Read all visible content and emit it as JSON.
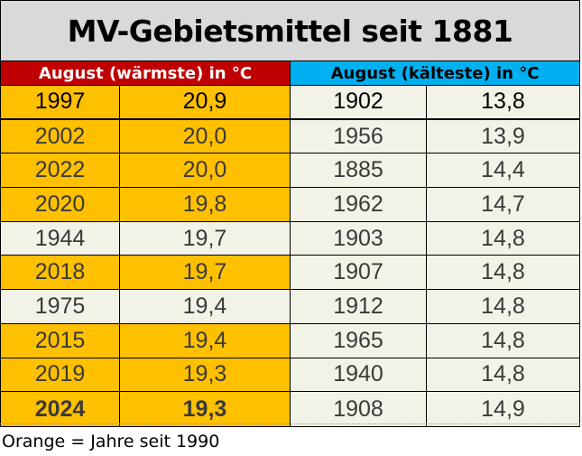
{
  "title": "MV-Gebietsmittel seit 1881",
  "header_warm": "August (wärmste) in °C",
  "header_cold": "August (kälteste) in °C",
  "colors": {
    "orange": "#ffc000",
    "red": "#c00000",
    "blue": "#00b0f0",
    "plain": "#f2f2e6"
  },
  "rows": [
    {
      "wy": "1997",
      "wv": "20,9",
      "orange": true,
      "cy": "1902",
      "cv": "13,8"
    },
    {
      "wy": "2002",
      "wv": "20,0",
      "orange": true,
      "cy": "1956",
      "cv": "13,9"
    },
    {
      "wy": "2022",
      "wv": "20,0",
      "orange": true,
      "cy": "1885",
      "cv": "14,4"
    },
    {
      "wy": "2020",
      "wv": "19,8",
      "orange": true,
      "cy": "1962",
      "cv": "14,7"
    },
    {
      "wy": "1944",
      "wv": "19,7",
      "orange": false,
      "cy": "1903",
      "cv": "14,8"
    },
    {
      "wy": "2018",
      "wv": "19,7",
      "orange": true,
      "cy": "1907",
      "cv": "14,8"
    },
    {
      "wy": "1975",
      "wv": "19,4",
      "orange": false,
      "cy": "1912",
      "cv": "14,8"
    },
    {
      "wy": "2015",
      "wv": "19,4",
      "orange": true,
      "cy": "1965",
      "cv": "14,8"
    },
    {
      "wy": "2019",
      "wv": "19,3",
      "orange": true,
      "cy": "1940",
      "cv": "14,8"
    },
    {
      "wy": "2024",
      "wv": "19,3",
      "orange": true,
      "cy": "1908",
      "cv": "14,9"
    }
  ],
  "note": "Orange = Jahre seit 1990"
}
